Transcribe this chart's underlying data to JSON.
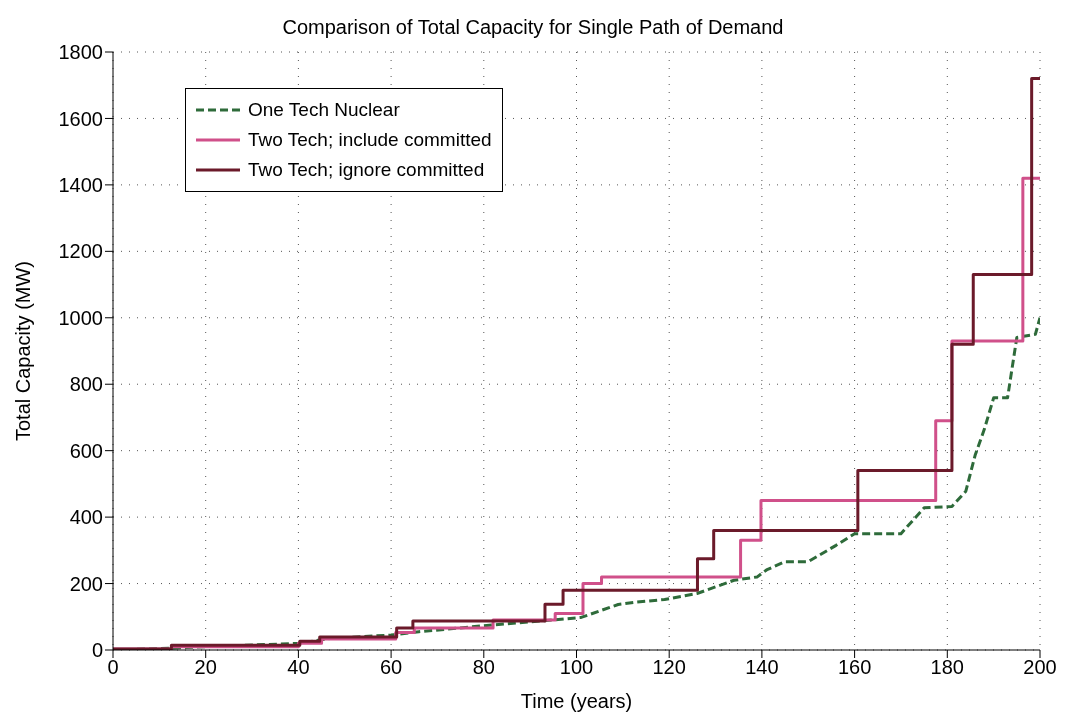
{
  "chart_data": {
    "type": "step",
    "title": "Comparison of Total Capacity for Single Path of Demand",
    "xlabel": "Time (years)",
    "ylabel": "Total Capacity (MW)",
    "xlim": [
      0,
      200
    ],
    "xticks": [
      0,
      20,
      40,
      60,
      80,
      100,
      120,
      140,
      160,
      180,
      200
    ],
    "ylim": [
      0,
      1800
    ],
    "yticks": [
      0,
      200,
      400,
      600,
      800,
      1000,
      1200,
      1400,
      1600,
      1800
    ],
    "grid": true,
    "legend": "top left",
    "marker": "none",
    "line_style": "solid",
    "series": [
      {
        "name": "One Tech Nuclear",
        "type": "line",
        "line_style": "dashed",
        "color": "#2e6b3a",
        "x": [
          0,
          12,
          20,
          40,
          47,
          60,
          66,
          80,
          93,
          101,
          109,
          113,
          119,
          126,
          134,
          139,
          141,
          145,
          150,
          156,
          160,
          170,
          175,
          181,
          184,
          186,
          188,
          190,
          193,
          195,
          199,
          200
        ],
        "values": [
          0,
          5,
          10,
          20,
          35,
          45,
          55,
          73,
          88,
          98,
          137,
          144,
          152,
          170,
          210,
          220,
          241,
          266,
          266,
          315,
          350,
          350,
          428,
          432,
          478,
          586,
          665,
          759,
          759,
          941,
          950,
          1000
        ]
      },
      {
        "name": "Two Tech; include committed",
        "color": "#d0508a",
        "x": [
          0,
          12.6,
          40,
          45,
          61,
          65,
          82,
          95.4,
          101.4,
          105.4,
          135.4,
          139.8,
          177.5,
          181,
          196.3,
          200
        ],
        "values": [
          3,
          10,
          20,
          33,
          53,
          66,
          90,
          110,
          200,
          220,
          330,
          450,
          690,
          930,
          1420,
          1420
        ]
      },
      {
        "name": "Two Tech; ignore committed",
        "color": "#6b1a2a",
        "x": [
          0,
          12.6,
          40.3,
          44.6,
          61.2,
          64.7,
          93.2,
          97.1,
          126.1,
          129.6,
          160.7,
          181,
          185.6,
          198.2,
          200
        ],
        "values": [
          3,
          14,
          26,
          39,
          66,
          87,
          138,
          180,
          275,
          360,
          540,
          920,
          1130,
          1720,
          1720
        ]
      }
    ]
  }
}
